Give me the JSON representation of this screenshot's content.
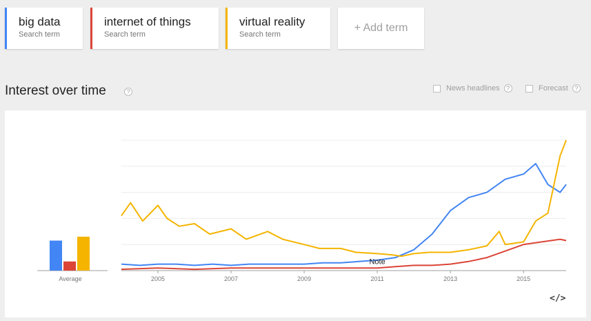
{
  "terms": [
    {
      "name": "big data",
      "sub": "Search term",
      "color": "#4285f4"
    },
    {
      "name": "internet of things",
      "sub": "Search term",
      "color": "#db4437"
    },
    {
      "name": "virtual reality",
      "sub": "Search term",
      "color": "#f4b400"
    }
  ],
  "add_term": "+ Add term",
  "section": {
    "title": "Interest over time",
    "help": "?"
  },
  "options": {
    "news": {
      "label": "News headlines",
      "help": "?"
    },
    "forecast": {
      "label": "Forecast",
      "help": "?"
    }
  },
  "embed_icon": "code-embed-icon",
  "embed_label": "</>",
  "chart_data": {
    "type": "line",
    "x_ticks": [
      "2005",
      "2007",
      "2009",
      "2011",
      "2013",
      "2015"
    ],
    "x_range": [
      "2004-01",
      "2016-03"
    ],
    "ylim": [
      0,
      100
    ],
    "grid": true,
    "annotation": "Note",
    "averages": {
      "label": "Average",
      "values": [
        {
          "series": "big data",
          "value": 23
        },
        {
          "series": "internet of things",
          "value": 7
        },
        {
          "series": "virtual reality",
          "value": 26
        }
      ]
    },
    "series": [
      {
        "color": "#4285f4",
        "points": [
          [
            "2004-01",
            5
          ],
          [
            "2004-07",
            4
          ],
          [
            "2005-01",
            5
          ],
          [
            "2005-07",
            5
          ],
          [
            "2006-01",
            4
          ],
          [
            "2006-07",
            5
          ],
          [
            "2007-01",
            4
          ],
          [
            "2007-07",
            5
          ],
          [
            "2008-01",
            5
          ],
          [
            "2008-07",
            5
          ],
          [
            "2009-01",
            5
          ],
          [
            "2009-07",
            6
          ],
          [
            "2010-01",
            6
          ],
          [
            "2010-07",
            7
          ],
          [
            "2011-01",
            8
          ],
          [
            "2011-07",
            10
          ],
          [
            "2012-01",
            16
          ],
          [
            "2012-07",
            28
          ],
          [
            "2013-01",
            46
          ],
          [
            "2013-07",
            56
          ],
          [
            "2014-01",
            60
          ],
          [
            "2014-07",
            70
          ],
          [
            "2015-01",
            74
          ],
          [
            "2015-05",
            82
          ],
          [
            "2015-09",
            66
          ],
          [
            "2016-01",
            60
          ],
          [
            "2016-03",
            66
          ]
        ]
      },
      {
        "color": "#db4437",
        "points": [
          [
            "2004-01",
            1
          ],
          [
            "2005-01",
            2
          ],
          [
            "2006-01",
            1
          ],
          [
            "2007-01",
            2
          ],
          [
            "2008-01",
            2
          ],
          [
            "2009-01",
            2
          ],
          [
            "2010-01",
            2
          ],
          [
            "2011-01",
            2
          ],
          [
            "2011-07",
            3
          ],
          [
            "2012-01",
            4
          ],
          [
            "2012-07",
            4
          ],
          [
            "2013-01",
            5
          ],
          [
            "2013-07",
            7
          ],
          [
            "2014-01",
            10
          ],
          [
            "2014-07",
            15
          ],
          [
            "2015-01",
            20
          ],
          [
            "2015-07",
            22
          ],
          [
            "2016-01",
            24
          ],
          [
            "2016-03",
            23
          ]
        ]
      },
      {
        "color": "#f4b400",
        "points": [
          [
            "2004-01",
            42
          ],
          [
            "2004-04",
            52
          ],
          [
            "2004-08",
            38
          ],
          [
            "2005-01",
            50
          ],
          [
            "2005-04",
            40
          ],
          [
            "2005-08",
            34
          ],
          [
            "2006-01",
            36
          ],
          [
            "2006-06",
            28
          ],
          [
            "2007-01",
            32
          ],
          [
            "2007-06",
            24
          ],
          [
            "2008-01",
            30
          ],
          [
            "2008-06",
            24
          ],
          [
            "2009-01",
            20
          ],
          [
            "2009-06",
            17
          ],
          [
            "2010-01",
            17
          ],
          [
            "2010-06",
            14
          ],
          [
            "2011-01",
            13
          ],
          [
            "2011-06",
            12
          ],
          [
            "2011-09",
            11
          ],
          [
            "2012-01",
            13
          ],
          [
            "2012-06",
            14
          ],
          [
            "2013-01",
            14
          ],
          [
            "2013-07",
            16
          ],
          [
            "2014-01",
            19
          ],
          [
            "2014-05",
            30
          ],
          [
            "2014-07",
            20
          ],
          [
            "2015-01",
            22
          ],
          [
            "2015-05",
            38
          ],
          [
            "2015-09",
            44
          ],
          [
            "2016-01",
            88
          ],
          [
            "2016-03",
            100
          ]
        ]
      }
    ]
  }
}
